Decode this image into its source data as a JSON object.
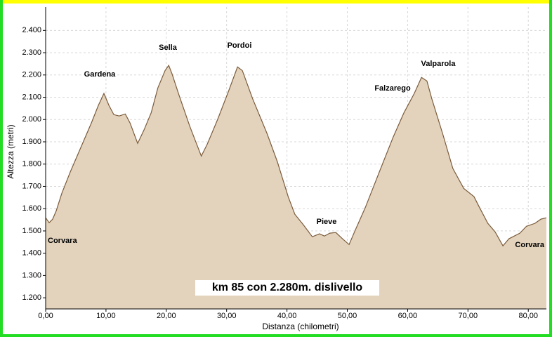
{
  "chart_data": {
    "type": "area",
    "xlabel": "Distanza (chilometri)",
    "ylabel": "Altezza (metri)",
    "x": [
      0,
      0.58,
      1.16,
      1.75,
      2.68,
      4.07,
      5.82,
      7.57,
      8.73,
      9.66,
      10.5,
      11.3,
      12.2,
      13.2,
      14.0,
      15.25,
      16.3,
      17.5,
      18.6,
      19.8,
      20.4,
      20.95,
      22.1,
      23.9,
      25.8,
      26.8,
      28.5,
      30.3,
      31.8,
      32.6,
      34.3,
      36.7,
      38.4,
      40.2,
      41.3,
      42.7,
      44.2,
      45.4,
      46.2,
      47.1,
      48.1,
      49.2,
      50.3,
      51.2,
      53.0,
      55.3,
      57.6,
      59.4,
      61.1,
      62.3,
      63.2,
      64.0,
      65.8,
      67.5,
      69.3,
      71.0,
      71.9,
      73.3,
      74.5,
      75.8,
      76.8,
      78.6,
      79.7,
      81.1,
      82.1,
      83.0
    ],
    "values": [
      1559,
      1537,
      1553,
      1590,
      1669,
      1764,
      1874,
      1984,
      2063,
      2117,
      2063,
      2022,
      2016,
      2025,
      1984,
      1893,
      1953,
      2031,
      2142,
      2220,
      2243,
      2205,
      2110,
      1969,
      1836,
      1890,
      2000,
      2126,
      2236,
      2220,
      2094,
      1937,
      1811,
      1654,
      1575,
      1528,
      1474,
      1487,
      1477,
      1490,
      1493,
      1465,
      1439,
      1496,
      1606,
      1764,
      1921,
      2031,
      2117,
      2189,
      2173,
      2094,
      1937,
      1780,
      1691,
      1654,
      1606,
      1534,
      1496,
      1433,
      1465,
      1490,
      1521,
      1534,
      1553,
      1559
    ],
    "color": "#e3d3bd",
    "line_color": "#7b5b3b",
    "xlim": [
      0,
      83
    ],
    "ylim": [
      1150,
      2505
    ],
    "xticks": [
      {
        "value": 0,
        "label": "0,00"
      },
      {
        "value": 10,
        "label": "10,00"
      },
      {
        "value": 20,
        "label": "20,00"
      },
      {
        "value": 30,
        "label": "30,00"
      },
      {
        "value": 40,
        "label": "40,00"
      },
      {
        "value": 50,
        "label": "50,00"
      },
      {
        "value": 60,
        "label": "60,00"
      },
      {
        "value": 70,
        "label": "70,00"
      },
      {
        "value": 80,
        "label": "80,00"
      }
    ],
    "yticks": [
      {
        "value": 1200,
        "label": "1.200"
      },
      {
        "value": 1300,
        "label": "1.300"
      },
      {
        "value": 1400,
        "label": "1.400"
      },
      {
        "value": 1500,
        "label": "1.500"
      },
      {
        "value": 1600,
        "label": "1.600"
      },
      {
        "value": 1700,
        "label": "1.700"
      },
      {
        "value": 1800,
        "label": "1.800"
      },
      {
        "value": 1900,
        "label": "1.900"
      },
      {
        "value": 2000,
        "label": "2.000"
      },
      {
        "value": 2100,
        "label": "2.100"
      },
      {
        "value": 2200,
        "label": "2.200"
      },
      {
        "value": 2300,
        "label": "2.300"
      },
      {
        "value": 2400,
        "label": "2.400"
      }
    ],
    "grid": true,
    "annotations": [
      "Corvara",
      "Gardena",
      "Sella",
      "Pordoi",
      "Pieve",
      "Falzarego",
      "Valparola",
      "Corvara",
      "km 85 con 2.280m. dislivello"
    ]
  }
}
